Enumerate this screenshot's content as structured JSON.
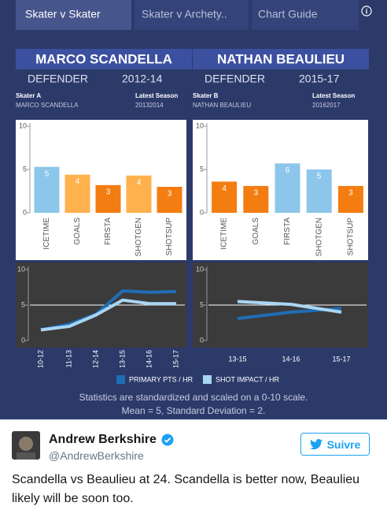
{
  "tabs": [
    "Skater v Skater",
    "Skater v Archety..",
    "Chart Guide"
  ],
  "players": [
    {
      "name": "MARCO SCANDELLA",
      "position": "DEFENDER",
      "years": "2012-14",
      "skater_label": "Skater A",
      "skater_value": "MARCO SCANDELLA",
      "season_label": "Latest Season",
      "season_value": "20132014"
    },
    {
      "name": "NATHAN BEAULIEU",
      "position": "DEFENDER",
      "years": "2015-17",
      "skater_label": "Skater B",
      "skater_value": "NATHAN BEAULIEU",
      "season_label": "Latest Season",
      "season_value": "20162017"
    }
  ],
  "chart_data": [
    {
      "type": "bar",
      "categories": [
        "ICETIME",
        "GOALS",
        "FIRSTA",
        "SHOTGEN",
        "SHOTSUP"
      ],
      "values": [
        5.3,
        4.4,
        3.2,
        4.3,
        3.0
      ],
      "value_labels": [
        "5",
        "4",
        "3",
        "4",
        "3"
      ],
      "colors": [
        "#8cc6ea",
        "#ffb14e",
        "#f47d11",
        "#ffb14e",
        "#f47d11"
      ],
      "ylim": [
        0,
        10
      ],
      "yticks": [
        0,
        5,
        10
      ]
    },
    {
      "type": "bar",
      "categories": [
        "ICETIME",
        "GOALS",
        "FIRSTA",
        "SHOTGEN",
        "SHOTSUP"
      ],
      "values": [
        3.6,
        3.1,
        5.7,
        5.0,
        3.1
      ],
      "value_labels": [
        "4",
        "3",
        "6",
        "5",
        "3"
      ],
      "colors": [
        "#f47d11",
        "#f47d11",
        "#8cc6ea",
        "#8cc6ea",
        "#f47d11"
      ],
      "ylim": [
        0,
        10
      ],
      "yticks": [
        0,
        5,
        10
      ]
    },
    {
      "type": "line",
      "categories": [
        "10-12",
        "11-13",
        "12-14",
        "13-15",
        "14-16",
        "15-17"
      ],
      "series": [
        {
          "values": [
            1.5,
            2.3,
            3.7,
            7.0,
            6.8,
            6.9
          ]
        },
        {
          "values": [
            1.5,
            2.0,
            3.6,
            5.7,
            5.2,
            5.2
          ]
        }
      ],
      "ylim": [
        0,
        10
      ],
      "yticks": [
        0,
        5,
        10
      ],
      "reference_line": 5
    },
    {
      "type": "line",
      "categories": [
        "13-15",
        "14-16",
        "15-17"
      ],
      "series": [
        {
          "values": [
            3.1,
            4.0,
            4.5
          ]
        },
        {
          "values": [
            5.5,
            5.1,
            4.0
          ]
        }
      ],
      "ylim": [
        0,
        10
      ],
      "yticks": [
        0,
        5,
        10
      ],
      "reference_line": 5
    }
  ],
  "legend": [
    {
      "name": "PRIMARY PTS / HR",
      "color": "#1f6db5"
    },
    {
      "name": "SHOT IMPACT / HR",
      "color": "#a9d5f2"
    }
  ],
  "footnote": [
    "Statistics are standardized and scaled on a 0-10 scale.",
    "Mean = 5, Standard Deviation = 2."
  ],
  "tweet": {
    "name": "Andrew Berkshire",
    "handle": "@AndrewBerkshire",
    "follow": "Suivre",
    "text": "Scandella vs Beaulieu at 24. Scandella is better now, Beaulieu likely will be soon too."
  }
}
